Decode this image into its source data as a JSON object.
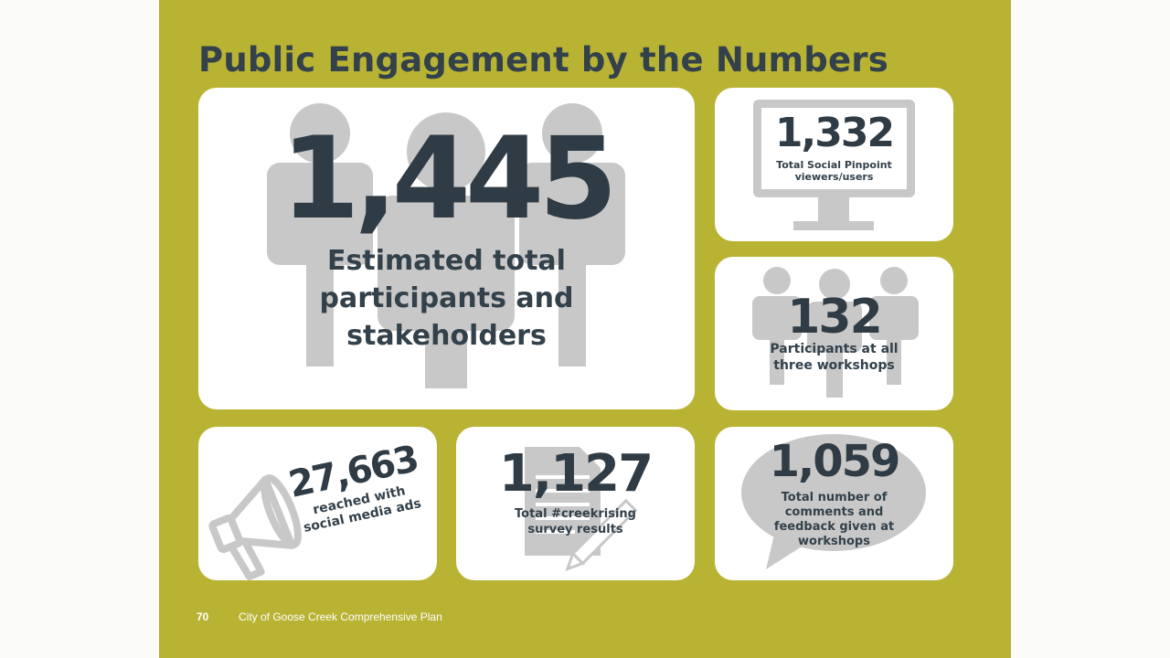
{
  "title": "Public Engagement by the Numbers",
  "stats": {
    "participants": {
      "value": "1,445",
      "label_line1": "Estimated total",
      "label_line2": "participants and",
      "label_line3": "stakeholders"
    },
    "social_pinpoint": {
      "value": "1,332",
      "label_line1": "Total Social Pinpoint",
      "label_line2": "viewers/users"
    },
    "workshops": {
      "value": "132",
      "label_line1": "Participants at all",
      "label_line2": "three workshops"
    },
    "social_media": {
      "value": "27,663",
      "label_line1": "reached with",
      "label_line2": "social media ads"
    },
    "survey": {
      "value": "1,127",
      "label_line1": "Total #creekrising",
      "label_line2": "survey results"
    },
    "comments": {
      "value": "1,059",
      "label_line1": "Total number of",
      "label_line2": "comments and",
      "label_line3": "feedback given at",
      "label_line4": "workshops"
    }
  },
  "footer": {
    "page_number": "70",
    "doc_title": "City of Goose Creek Comprehensive Plan"
  },
  "colors": {
    "page_bg": "#b9b334",
    "card_bg": "#ffffff",
    "text": "#33414b",
    "icon": "#c8c8c8"
  }
}
